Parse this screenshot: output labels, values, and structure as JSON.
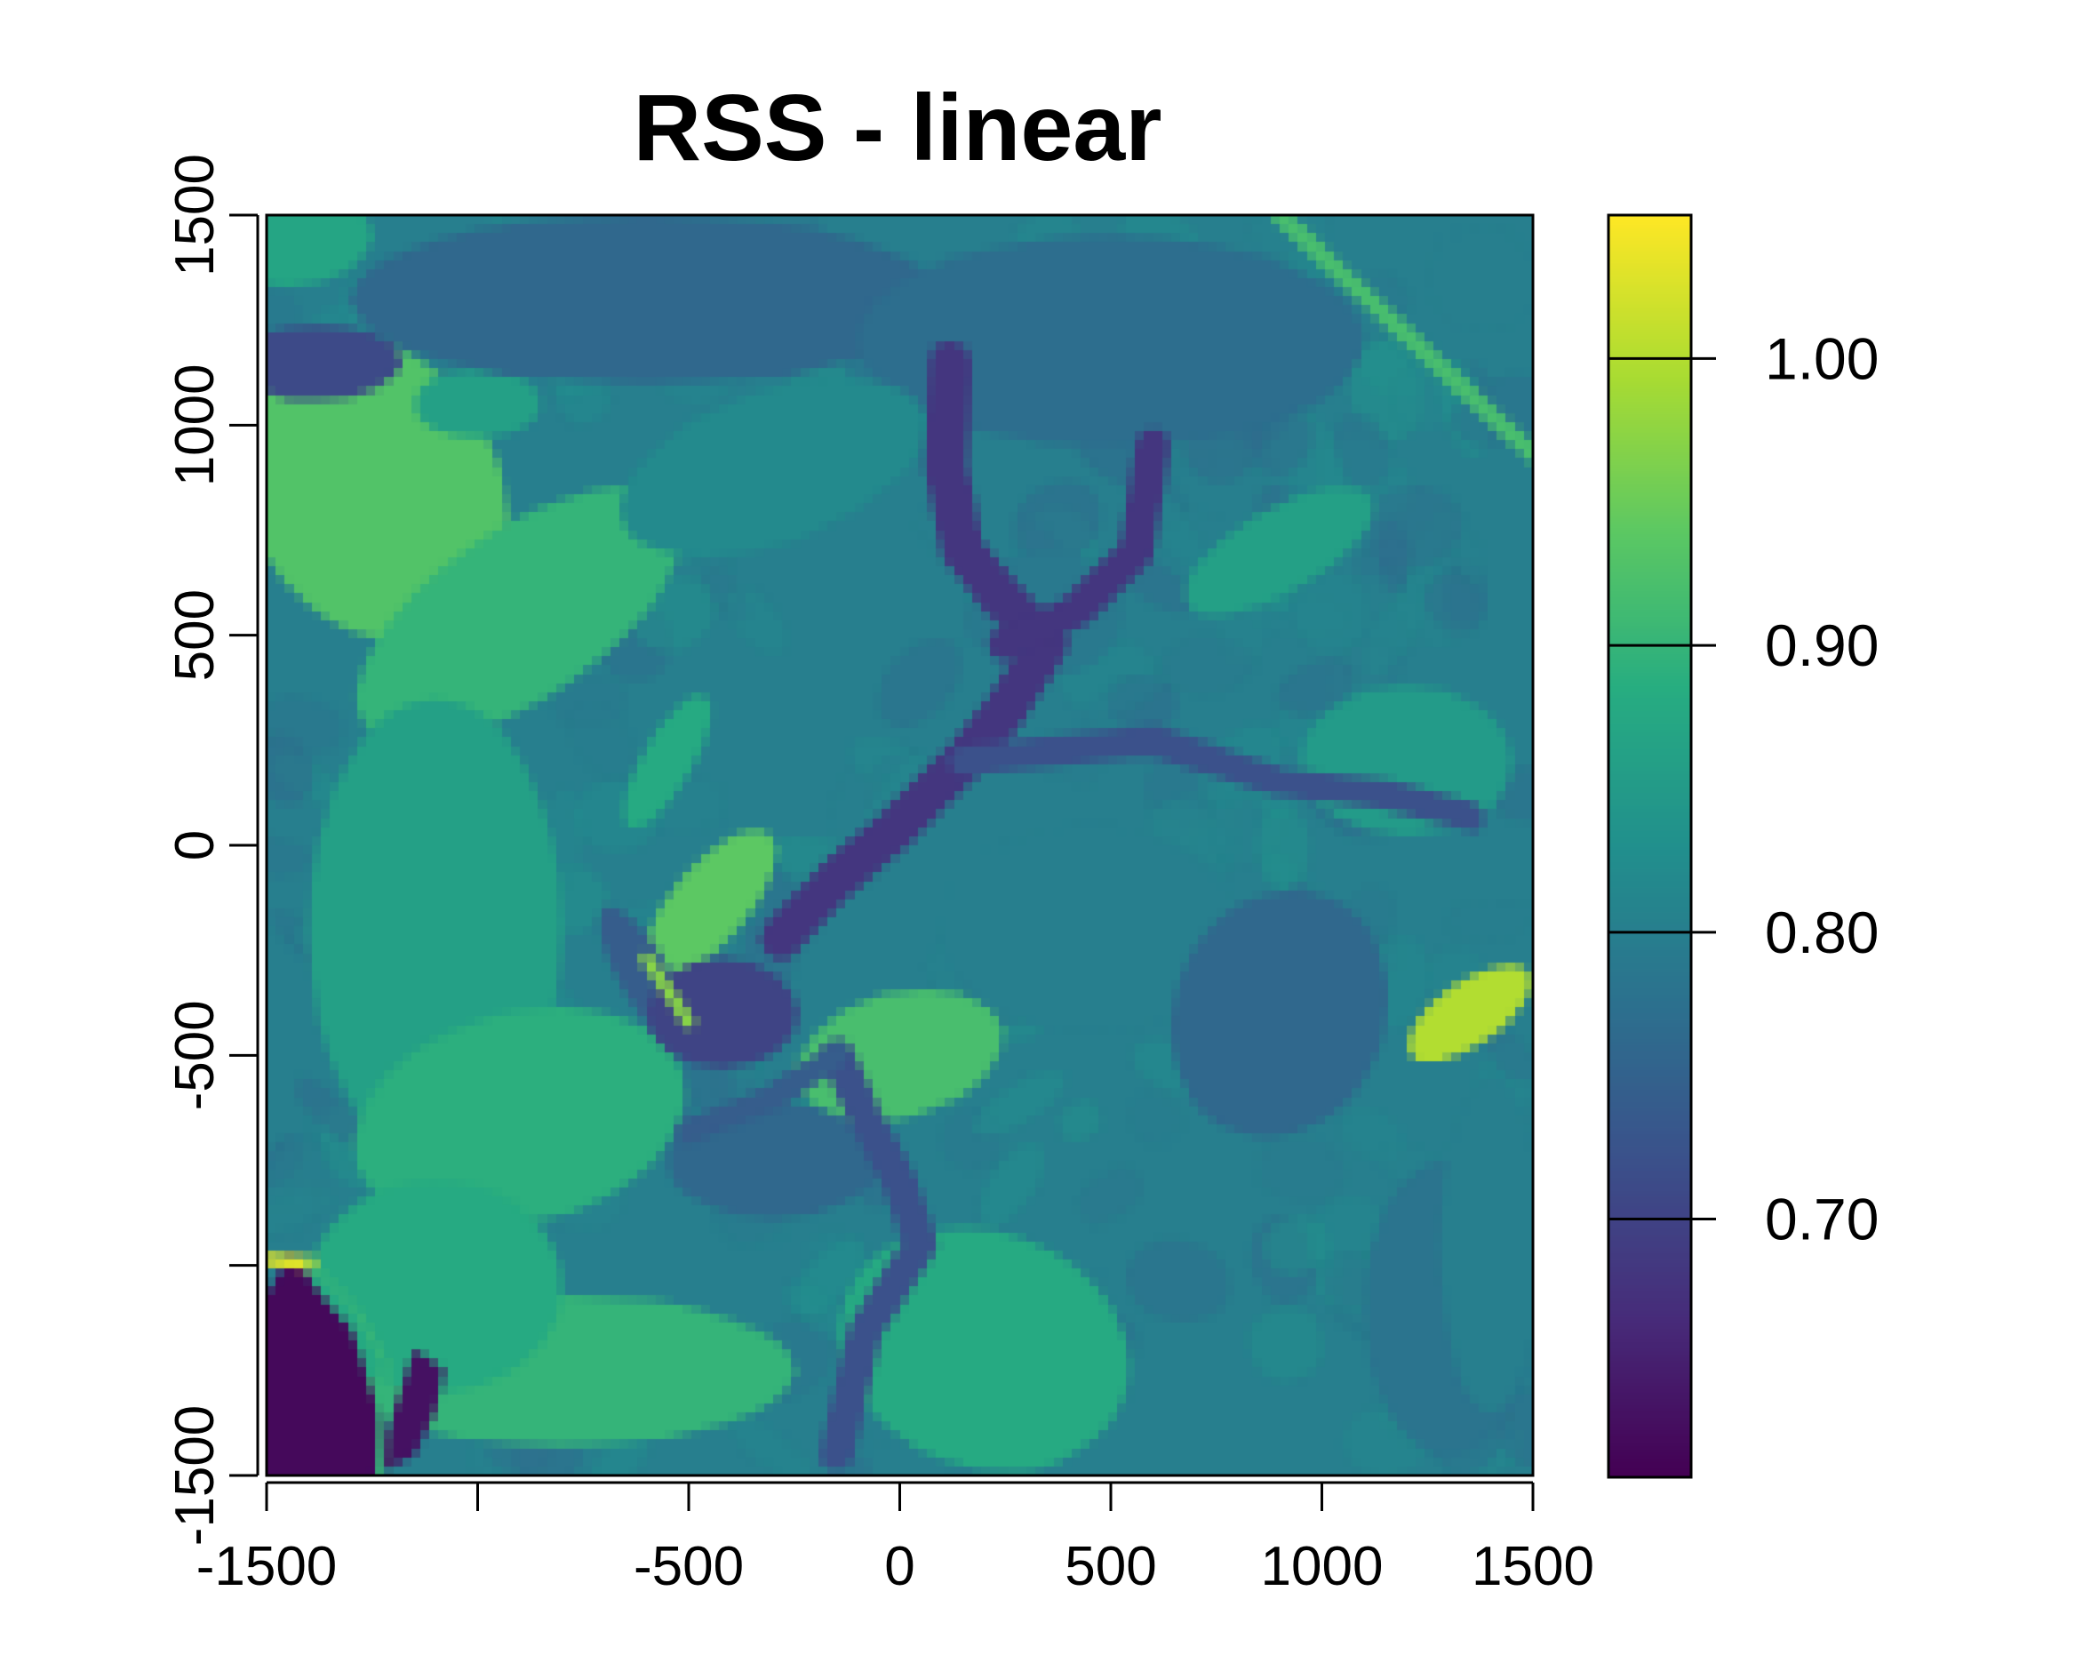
{
  "chart_data": {
    "type": "heatmap",
    "title": "RSS - linear",
    "xlabel": "",
    "ylabel": "",
    "xlim": [
      -1500,
      1500
    ],
    "ylim": [
      -1500,
      1500
    ],
    "x_ticks": [
      {
        "value": -1500,
        "label": "-1500"
      },
      {
        "value": -1000,
        "label": ""
      },
      {
        "value": -500,
        "label": "-500"
      },
      {
        "value": 0,
        "label": "0"
      },
      {
        "value": 500,
        "label": "500"
      },
      {
        "value": 1000,
        "label": "1000"
      },
      {
        "value": 1500,
        "label": "1500"
      }
    ],
    "y_ticks": [
      {
        "value": -1500,
        "label": "-1500"
      },
      {
        "value": -1000,
        "label": ""
      },
      {
        "value": -500,
        "label": "-500"
      },
      {
        "value": 0,
        "label": "0"
      },
      {
        "value": 500,
        "label": "500"
      },
      {
        "value": 1000,
        "label": "1000"
      },
      {
        "value": 1500,
        "label": "1500"
      }
    ],
    "colorscale": "viridis",
    "color_range": [
      0.61,
      1.05
    ],
    "colorbar_ticks": [
      {
        "value": 0.7,
        "label": "0.70"
      },
      {
        "value": 0.8,
        "label": "0.80"
      },
      {
        "value": 0.9,
        "label": "0.90"
      },
      {
        "value": 1.0,
        "label": "1.00"
      }
    ],
    "background_value": 0.8,
    "features": [
      {
        "kind": "blob",
        "x": -1250,
        "y": 850,
        "rx": 300,
        "ry": 380,
        "rot": -30,
        "value": 0.93
      },
      {
        "kind": "blob",
        "x": -900,
        "y": 550,
        "rx": 450,
        "ry": 200,
        "rot": -35,
        "value": 0.9
      },
      {
        "kind": "blob",
        "x": -1450,
        "y": 1450,
        "rx": 200,
        "ry": 120,
        "rot": 0,
        "value": 0.87
      },
      {
        "kind": "blob",
        "x": -1380,
        "y": 1150,
        "rx": 200,
        "ry": 90,
        "rot": 0,
        "value": 0.71
      },
      {
        "kind": "blob",
        "x": -1000,
        "y": 1050,
        "rx": 150,
        "ry": 80,
        "rot": 0,
        "value": 0.86
      },
      {
        "kind": "blob",
        "x": -1100,
        "y": -200,
        "rx": 300,
        "ry": 550,
        "rot": 0,
        "value": 0.86
      },
      {
        "kind": "blob",
        "x": -900,
        "y": -650,
        "rx": 400,
        "ry": 250,
        "rot": -15,
        "value": 0.89
      },
      {
        "kind": "blob",
        "x": -800,
        "y": -1250,
        "rx": 550,
        "ry": 180,
        "rot": 0,
        "value": 0.9
      },
      {
        "kind": "blob",
        "x": -1100,
        "y": -1050,
        "rx": 300,
        "ry": 250,
        "rot": 0,
        "value": 0.88
      },
      {
        "kind": "blob",
        "x": 200,
        "y": -1200,
        "rx": 350,
        "ry": 280,
        "rot": 20,
        "value": 0.88
      },
      {
        "kind": "blob",
        "x": 0,
        "y": -500,
        "rx": 250,
        "ry": 150,
        "rot": -15,
        "value": 0.92
      },
      {
        "kind": "blob",
        "x": -450,
        "y": -140,
        "rx": 90,
        "ry": 220,
        "rot": 40,
        "value": 0.94
      },
      {
        "kind": "blob",
        "x": -550,
        "y": 200,
        "rx": 60,
        "ry": 180,
        "rot": 30,
        "value": 0.88
      },
      {
        "kind": "blob",
        "x": -600,
        "y": -320,
        "rx": 60,
        "ry": 200,
        "rot": -30,
        "value": 0.74
      },
      {
        "kind": "blob",
        "x": -420,
        "y": -400,
        "rx": 180,
        "ry": 130,
        "rot": 0,
        "value": 0.7
      },
      {
        "kind": "blob",
        "x": -300,
        "y": -750,
        "rx": 250,
        "ry": 140,
        "rot": 0,
        "value": 0.76
      },
      {
        "kind": "blob",
        "x": -600,
        "y": 1300,
        "rx": 700,
        "ry": 200,
        "rot": 0,
        "value": 0.76
      },
      {
        "kind": "blob",
        "x": 500,
        "y": 1200,
        "rx": 600,
        "ry": 250,
        "rot": 0,
        "value": 0.77
      },
      {
        "kind": "blob",
        "x": -300,
        "y": 900,
        "rx": 380,
        "ry": 180,
        "rot": -20,
        "value": 0.82
      },
      {
        "kind": "blob",
        "x": 350,
        "y": 550,
        "rx": 180,
        "ry": 150,
        "rot": 0,
        "value": 0.79
      },
      {
        "kind": "blob",
        "x": 450,
        "y": -200,
        "rx": 350,
        "ry": 250,
        "rot": 0,
        "value": 0.8
      },
      {
        "kind": "blob",
        "x": 900,
        "y": -400,
        "rx": 250,
        "ry": 300,
        "rot": 20,
        "value": 0.76
      },
      {
        "kind": "blob",
        "x": 1200,
        "y": 200,
        "rx": 250,
        "ry": 180,
        "rot": 0,
        "value": 0.85
      },
      {
        "kind": "blob",
        "x": 900,
        "y": 700,
        "rx": 250,
        "ry": 100,
        "rot": -30,
        "value": 0.86
      },
      {
        "kind": "blob",
        "x": 1300,
        "y": -1100,
        "rx": 200,
        "ry": 350,
        "rot": 0,
        "value": 0.78
      },
      {
        "kind": "blob",
        "x": 1380,
        "y": 1350,
        "rx": 130,
        "ry": 130,
        "rot": 0,
        "value": 0.8
      },
      {
        "kind": "blob",
        "x": 1400,
        "y": -950,
        "rx": 120,
        "ry": 400,
        "rot": 0,
        "value": 0.8
      },
      {
        "kind": "blob",
        "x": 1350,
        "y": -400,
        "rx": 170,
        "ry": 75,
        "rot": -35,
        "value": 1.0
      },
      {
        "kind": "line",
        "points": [
          [
            900,
            1500
          ],
          [
            1500,
            930
          ]
        ],
        "width": 40,
        "value": 0.92
      },
      {
        "kind": "line",
        "points": [
          [
            120,
            1150
          ],
          [
            110,
            900
          ],
          [
            150,
            700
          ],
          [
            250,
            580
          ],
          [
            350,
            480
          ],
          [
            250,
            320
          ],
          [
            150,
            200
          ],
          [
            0,
            50
          ],
          [
            -150,
            -80
          ],
          [
            -280,
            -220
          ]
        ],
        "width": 100,
        "value": 0.68
      },
      {
        "kind": "line",
        "points": [
          [
            600,
            950
          ],
          [
            560,
            700
          ],
          [
            420,
            560
          ],
          [
            250,
            480
          ]
        ],
        "width": 80,
        "value": 0.68
      },
      {
        "kind": "line",
        "points": [
          [
            150,
            200
          ],
          [
            600,
            250
          ],
          [
            900,
            150
          ],
          [
            1150,
            120
          ],
          [
            1350,
            70
          ]
        ],
        "width": 70,
        "value": 0.72
      },
      {
        "kind": "line",
        "points": [
          [
            -150,
            -500
          ],
          [
            -80,
            -650
          ],
          [
            0,
            -800
          ],
          [
            50,
            -950
          ],
          [
            -80,
            -1150
          ],
          [
            -150,
            -1450
          ]
        ],
        "width": 80,
        "value": 0.72
      },
      {
        "kind": "line",
        "points": [
          [
            -150,
            -500
          ],
          [
            -300,
            -600
          ],
          [
            -500,
            -680
          ]
        ],
        "width": 60,
        "value": 0.74
      },
      {
        "kind": "line",
        "points": [
          [
            -600,
            -270
          ],
          [
            -500,
            -420
          ]
        ],
        "width": 30,
        "value": 0.97
      },
      {
        "kind": "poly",
        "points": [
          [
            -1500,
            -1070
          ],
          [
            -1440,
            -970
          ],
          [
            -1380,
            -1060
          ],
          [
            -1300,
            -1150
          ],
          [
            -1250,
            -1300
          ],
          [
            -1200,
            -1450
          ],
          [
            -1230,
            -1500
          ],
          [
            -1500,
            -1500
          ]
        ],
        "value": 0.62
      },
      {
        "kind": "poly",
        "points": [
          [
            -1250,
            -1500
          ],
          [
            -1150,
            -1450
          ],
          [
            -1100,
            -1350
          ],
          [
            -1080,
            -1250
          ],
          [
            -1150,
            -1200
          ],
          [
            -1200,
            -1350
          ]
        ],
        "value": 0.63
      },
      {
        "kind": "line",
        "points": [
          [
            -1500,
            -985
          ],
          [
            -1390,
            -995
          ]
        ],
        "width": 30,
        "value": 1.03
      },
      {
        "kind": "line",
        "points": [
          [
            -1400,
            -990
          ],
          [
            -1290,
            -1100
          ],
          [
            -1220,
            -1230
          ],
          [
            -1230,
            -1500
          ]
        ],
        "width": 18,
        "value": 0.9
      }
    ]
  }
}
